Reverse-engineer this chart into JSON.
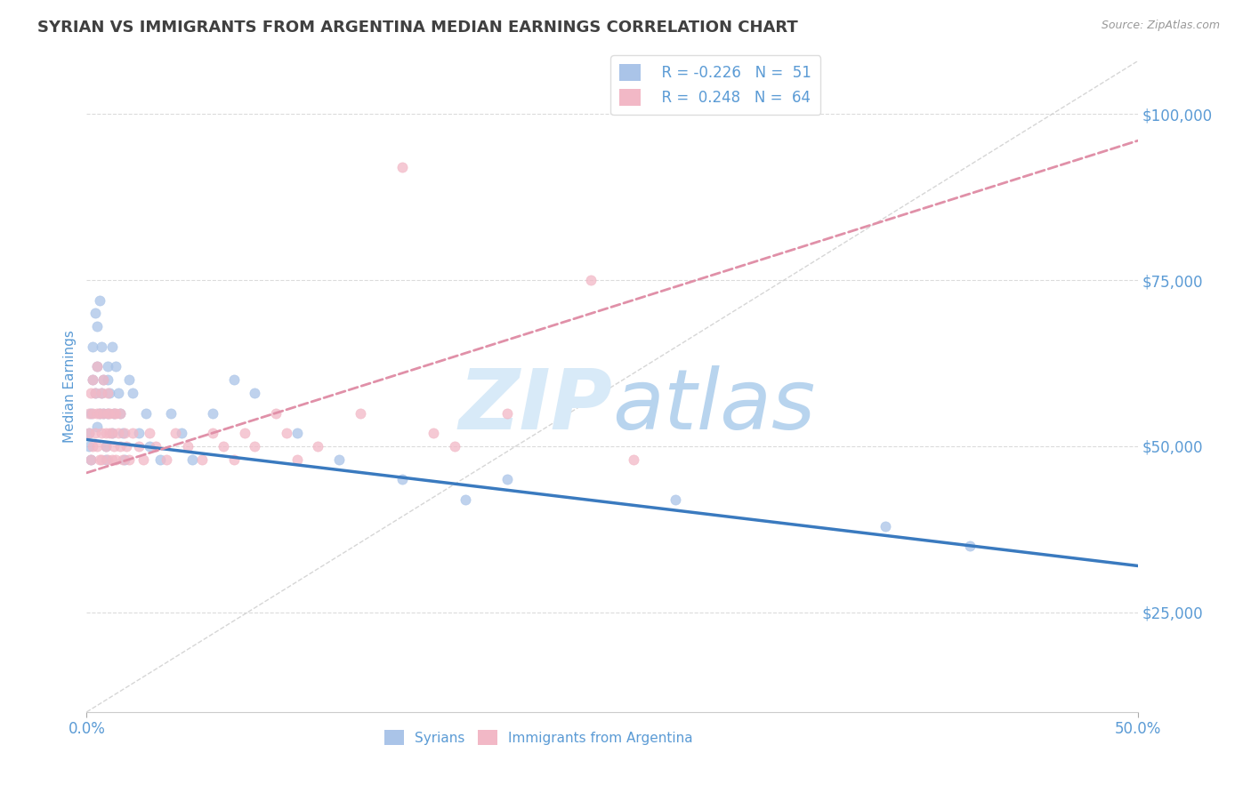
{
  "title": "SYRIAN VS IMMIGRANTS FROM ARGENTINA MEDIAN EARNINGS CORRELATION CHART",
  "source": "Source: ZipAtlas.com",
  "ylabel_label": "Median Earnings",
  "xlim": [
    0,
    0.5
  ],
  "ylim": [
    10000,
    108000
  ],
  "yticks": [
    25000,
    50000,
    75000,
    100000
  ],
  "ytick_labels": [
    "$25,000",
    "$50,000",
    "$75,000",
    "$100,000"
  ],
  "xtick_left_label": "0.0%",
  "xtick_right_label": "50.0%",
  "legend_labels": [
    "Syrians",
    "Immigrants from Argentina"
  ],
  "legend_r_values": [
    "R = -0.226",
    "R =  0.248"
  ],
  "legend_n_values": [
    "N =  51",
    "N =  64"
  ],
  "color_syrian": "#aac4e8",
  "color_argentina": "#f2b8c6",
  "color_trendline_syrian": "#3a7abf",
  "color_trendline_argentina": "#e090a8",
  "color_diag": "#cccccc",
  "color_axis_text": "#5b9bd5",
  "color_title": "#404040",
  "color_source": "#999999",
  "color_watermark": "#d8eaf8",
  "watermark_text": "ZIP",
  "watermark_text2": "atlas",
  "background_color": "#ffffff",
  "grid_color": "#cccccc",
  "syrians_x": [
    0.001,
    0.001,
    0.002,
    0.002,
    0.003,
    0.003,
    0.004,
    0.004,
    0.005,
    0.005,
    0.005,
    0.006,
    0.006,
    0.007,
    0.007,
    0.008,
    0.008,
    0.009,
    0.009,
    0.01,
    0.01,
    0.01,
    0.011,
    0.012,
    0.012,
    0.013,
    0.014,
    0.015,
    0.016,
    0.017,
    0.018,
    0.02,
    0.022,
    0.025,
    0.028,
    0.03,
    0.035,
    0.04,
    0.045,
    0.05,
    0.06,
    0.07,
    0.08,
    0.1,
    0.12,
    0.15,
    0.18,
    0.2,
    0.28,
    0.38,
    0.42
  ],
  "syrians_y": [
    50000,
    52000,
    55000,
    48000,
    60000,
    65000,
    58000,
    70000,
    53000,
    62000,
    68000,
    55000,
    72000,
    58000,
    65000,
    60000,
    55000,
    50000,
    48000,
    62000,
    55000,
    60000,
    58000,
    52000,
    65000,
    55000,
    62000,
    58000,
    55000,
    52000,
    48000,
    60000,
    58000,
    52000,
    55000,
    50000,
    48000,
    55000,
    52000,
    48000,
    55000,
    60000,
    58000,
    52000,
    48000,
    45000,
    42000,
    45000,
    42000,
    38000,
    35000
  ],
  "argentina_x": [
    0.001,
    0.001,
    0.002,
    0.002,
    0.003,
    0.003,
    0.003,
    0.004,
    0.004,
    0.005,
    0.005,
    0.005,
    0.006,
    0.006,
    0.007,
    0.007,
    0.007,
    0.008,
    0.008,
    0.009,
    0.009,
    0.01,
    0.01,
    0.01,
    0.011,
    0.011,
    0.012,
    0.012,
    0.013,
    0.013,
    0.014,
    0.014,
    0.015,
    0.016,
    0.016,
    0.017,
    0.018,
    0.019,
    0.02,
    0.022,
    0.025,
    0.027,
    0.03,
    0.033,
    0.038,
    0.042,
    0.048,
    0.055,
    0.06,
    0.065,
    0.07,
    0.075,
    0.08,
    0.09,
    0.095,
    0.1,
    0.11,
    0.13,
    0.15,
    0.165,
    0.175,
    0.2,
    0.24,
    0.26
  ],
  "argentina_y": [
    52000,
    55000,
    48000,
    58000,
    50000,
    55000,
    60000,
    52000,
    58000,
    50000,
    55000,
    62000,
    48000,
    55000,
    52000,
    58000,
    48000,
    55000,
    60000,
    50000,
    52000,
    55000,
    48000,
    58000,
    52000,
    55000,
    48000,
    52000,
    55000,
    50000,
    48000,
    55000,
    52000,
    50000,
    55000,
    48000,
    52000,
    50000,
    48000,
    52000,
    50000,
    48000,
    52000,
    50000,
    48000,
    52000,
    50000,
    48000,
    52000,
    50000,
    48000,
    52000,
    50000,
    55000,
    52000,
    48000,
    50000,
    55000,
    92000,
    52000,
    50000,
    55000,
    75000,
    48000
  ],
  "syrian_trendline_x": [
    0.0,
    0.5
  ],
  "syrian_trendline_y": [
    51000,
    32000
  ],
  "argentina_trendline_x": [
    0.0,
    0.5
  ],
  "argentina_trendline_y": [
    46000,
    96000
  ],
  "diag_line_x": [
    0.0,
    0.5
  ],
  "diag_line_y": [
    10000,
    108000
  ]
}
